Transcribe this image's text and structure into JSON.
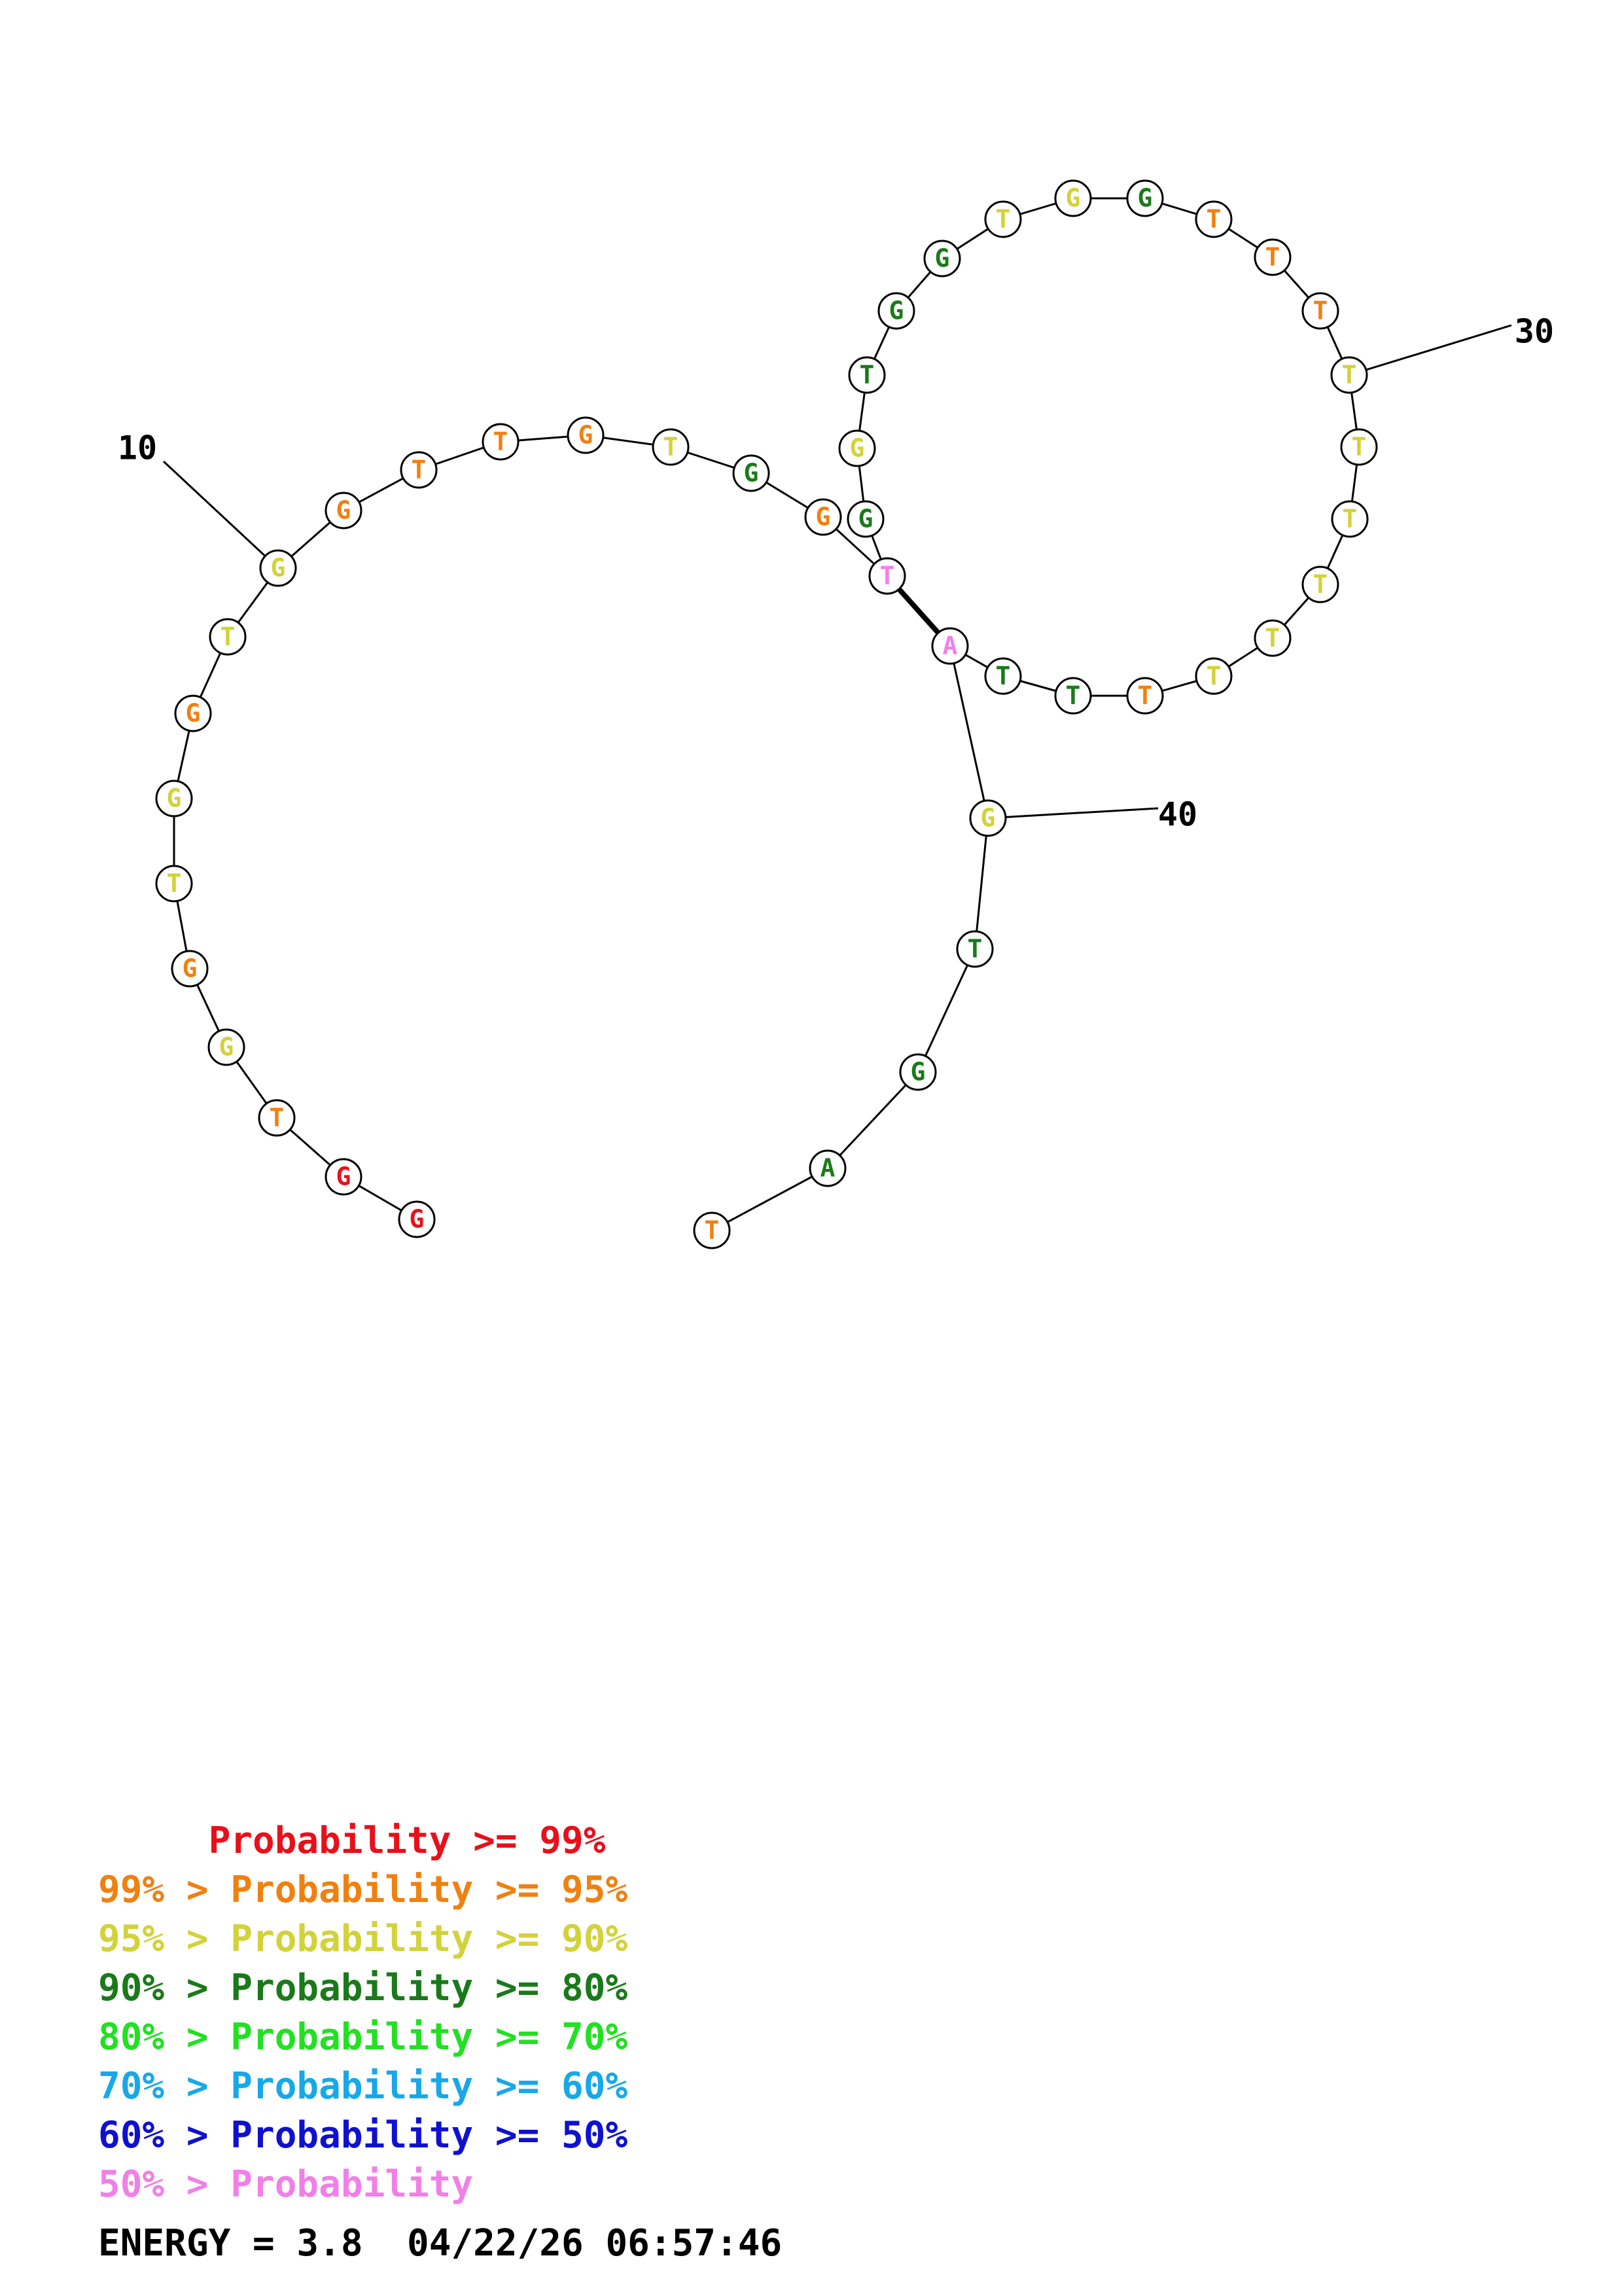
{
  "sequence": [
    {
      "base": "G",
      "color": "#e8101a"
    },
    {
      "base": "G",
      "color": "#e8101a"
    },
    {
      "base": "T",
      "color": "#f08010"
    },
    {
      "base": "G",
      "color": "#d2d23a"
    },
    {
      "base": "G",
      "color": "#f08010"
    },
    {
      "base": "T",
      "color": "#d2d23a"
    },
    {
      "base": "G",
      "color": "#d2d23a"
    },
    {
      "base": "G",
      "color": "#f08010"
    },
    {
      "base": "T",
      "color": "#d2d23a"
    },
    {
      "base": "G",
      "color": "#d2d23a"
    },
    {
      "base": "G",
      "color": "#f08010"
    },
    {
      "base": "T",
      "color": "#f08010"
    },
    {
      "base": "T",
      "color": "#f08010"
    },
    {
      "base": "G",
      "color": "#f08010"
    },
    {
      "base": "T",
      "color": "#d2d23a"
    },
    {
      "base": "G",
      "color": "#1a7a1a"
    },
    {
      "base": "G",
      "color": "#f08010"
    },
    {
      "base": "T",
      "color": "#f080e8"
    },
    {
      "base": "G",
      "color": "#1a7a1a"
    },
    {
      "base": "G",
      "color": "#d2d23a"
    },
    {
      "base": "T",
      "color": "#1a7a1a"
    },
    {
      "base": "G",
      "color": "#1a7a1a"
    },
    {
      "base": "G",
      "color": "#1a7a1a"
    },
    {
      "base": "T",
      "color": "#d2d23a"
    },
    {
      "base": "G",
      "color": "#d2d23a"
    },
    {
      "base": "G",
      "color": "#1a7a1a"
    },
    {
      "base": "T",
      "color": "#f08010"
    },
    {
      "base": "T",
      "color": "#f08010"
    },
    {
      "base": "T",
      "color": "#f08010"
    },
    {
      "base": "T",
      "color": "#d2d23a"
    },
    {
      "base": "T",
      "color": "#d2d23a"
    },
    {
      "base": "T",
      "color": "#d2d23a"
    },
    {
      "base": "T",
      "color": "#d2d23a"
    },
    {
      "base": "T",
      "color": "#d2d23a"
    },
    {
      "base": "T",
      "color": "#d2d23a"
    },
    {
      "base": "T",
      "color": "#f08010"
    },
    {
      "base": "T",
      "color": "#1a7a1a"
    },
    {
      "base": "T",
      "color": "#1a7a1a"
    },
    {
      "base": "A",
      "color": "#f080e8"
    },
    {
      "base": "G",
      "color": "#d2d23a"
    },
    {
      "base": "T",
      "color": "#1a7a1a"
    },
    {
      "base": "G",
      "color": "#1a7a1a"
    },
    {
      "base": "A",
      "color": "#1a7a1a"
    },
    {
      "base": "T",
      "color": "#f08010"
    }
  ],
  "pairs": [
    [
      18,
      39
    ]
  ],
  "labels": [
    {
      "index": 10,
      "text": "10"
    },
    {
      "index": 30,
      "text": "30"
    },
    {
      "index": 40,
      "text": "40"
    }
  ],
  "legend": [
    {
      "text": "     Probability >= 99%",
      "color": "#e8101a"
    },
    {
      "text": "99% > Probability >= 95%",
      "color": "#f08010"
    },
    {
      "text": "95% > Probability >= 90%",
      "color": "#d2d23a"
    },
    {
      "text": "90% > Probability >= 80%",
      "color": "#1a7a1a"
    },
    {
      "text": "80% > Probability >= 70%",
      "color": "#22e022"
    },
    {
      "text": "70% > Probability >= 60%",
      "color": "#18a8e8"
    },
    {
      "text": "60% > Probability >= 50%",
      "color": "#1010d0"
    },
    {
      "text": "50% > Probability",
      "color": "#f080e8"
    }
  ],
  "energy_line": "ENERGY = 3.8  04/22/26 06:57:46"
}
